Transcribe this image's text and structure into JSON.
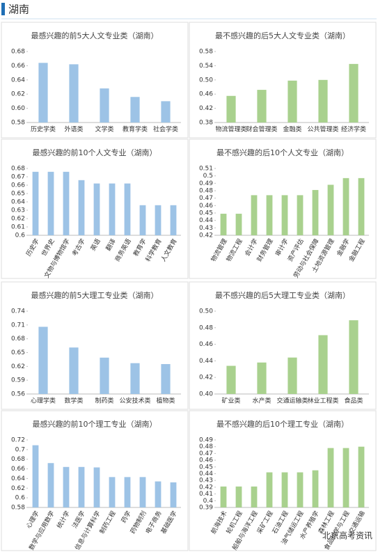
{
  "header": {
    "title": "湖南"
  },
  "watermark": "北京高考资讯",
  "chart_data": [
    {
      "type": "bar",
      "title": "最感兴趣的前5大人文专业类（湖南）",
      "color": "#9dc3e6",
      "categories": [
        "历史学类",
        "外语类",
        "文学类",
        "教育学类",
        "社会学类"
      ],
      "values": [
        0.664,
        0.662,
        0.628,
        0.616,
        0.61
      ],
      "ylim": [
        0.58,
        0.68
      ],
      "yticks": [
        0.58,
        {
          "value": 0.6,
          "label": "0.60"
        },
        0.62,
        0.64,
        0.66,
        0.68
      ]
    },
    {
      "type": "bar",
      "title": "最不感兴趣的后5大人文专业类（湖南）",
      "color": "#a9d18e",
      "categories": [
        "物流管理类",
        "财会管理类",
        "金融类",
        "公共管理类",
        "经济学类"
      ],
      "values": [
        0.455,
        0.472,
        0.498,
        0.5,
        0.545
      ],
      "ylim": [
        0.38,
        0.58
      ],
      "yticks": [
        0.38,
        0.42,
        0.46,
        {
          "value": 0.5,
          "label": "0.50"
        },
        0.54,
        0.58
      ]
    },
    {
      "type": "bar",
      "title": "最感兴趣的前10个人文专业（湖南）",
      "color": "#9dc3e6",
      "categories": [
        "历史学",
        "世界史",
        "文物与博物馆学",
        "考古学",
        "英语",
        "翻译",
        "商务英语",
        "教育学",
        "科学教育",
        "人文教育"
      ],
      "values": [
        0.676,
        0.676,
        0.676,
        0.666,
        0.662,
        0.662,
        0.662,
        0.636,
        0.636,
        0.636
      ],
      "ylim": [
        0.6,
        0.68
      ],
      "yticks": [
        0.6,
        0.61,
        0.62,
        0.63,
        0.64,
        0.65,
        0.66,
        0.67,
        0.68
      ]
    },
    {
      "type": "bar",
      "title": "最不感兴趣的后10个人文专业（湖南）",
      "color": "#a9d18e",
      "categories": [
        "物流管理",
        "物流工程",
        "会计学",
        "财务管理",
        "审计学",
        "资产评估",
        "劳动与社会保障",
        "土地资源管理",
        "金融学",
        "金融工程"
      ],
      "values": [
        0.449,
        0.449,
        0.474,
        0.474,
        0.474,
        0.474,
        0.481,
        0.488,
        0.497,
        0.497
      ],
      "ylim": [
        0.42,
        0.51
      ],
      "yticks": [
        0.42,
        0.43,
        0.44,
        0.45,
        0.46,
        0.47,
        0.48,
        0.49,
        0.5,
        0.51
      ]
    },
    {
      "type": "bar",
      "title": "最感兴趣的前5大理工专业类（湖南）",
      "color": "#9dc3e6",
      "categories": [
        "心理学类",
        "数学类",
        "制药类",
        "公安技术类",
        "植物类"
      ],
      "values": [
        0.706,
        0.661,
        0.639,
        0.627,
        0.625
      ],
      "ylim": [
        0.56,
        0.74
      ],
      "yticks": [
        0.56,
        0.59,
        0.62,
        0.65,
        0.68,
        0.71,
        0.74
      ]
    },
    {
      "type": "bar",
      "title": "最不感兴趣的后5大理工专业类（湖南）",
      "color": "#a9d18e",
      "categories": [
        "矿业类",
        "水产类",
        "交通运输类",
        "林业工程类",
        "食品类"
      ],
      "values": [
        0.434,
        0.438,
        0.444,
        0.471,
        0.489
      ],
      "ylim": [
        0.4,
        0.5
      ],
      "yticks": [
        {
          "value": 0.4,
          "label": "0.40"
        },
        0.42,
        0.44,
        0.46,
        0.48,
        {
          "value": 0.5,
          "label": "0.50"
        }
      ]
    },
    {
      "type": "bar",
      "title": "最感兴趣的前10个理工专业（湖南）",
      "color": "#9dc3e6",
      "categories": [
        "心理学",
        "数学与应用数学",
        "统计学",
        "法医学",
        "信息与计算科学",
        "制药工程",
        "药学",
        "药物制剂",
        "电子商务",
        "基础医学"
      ],
      "values": [
        0.709,
        0.672,
        0.664,
        0.664,
        0.663,
        0.643,
        0.643,
        0.643,
        0.634,
        0.632
      ],
      "ylim": [
        0.58,
        0.72
      ],
      "yticks": [
        0.58,
        0.6,
        0.62,
        0.64,
        0.66,
        0.68,
        0.7,
        0.72
      ]
    },
    {
      "type": "bar",
      "title": "最不感兴趣的后10个理工专业（湖南）",
      "color": "#a9d18e",
      "categories": [
        "航海技术",
        "轮机工程",
        "船舶与海洋工程",
        "采矿工程",
        "石油工程",
        "油气储运工程",
        "水产养殖学",
        "森林工程",
        "食品科学与工程",
        "交通运输"
      ],
      "values": [
        0.421,
        0.421,
        0.421,
        0.442,
        0.442,
        0.442,
        0.445,
        0.478,
        0.478,
        0.48
      ],
      "ylim": [
        0.39,
        0.49
      ],
      "yticks": [
        0.39,
        0.4,
        0.41,
        0.42,
        0.43,
        0.44,
        0.45,
        0.46,
        0.47,
        0.48,
        0.49
      ]
    }
  ]
}
